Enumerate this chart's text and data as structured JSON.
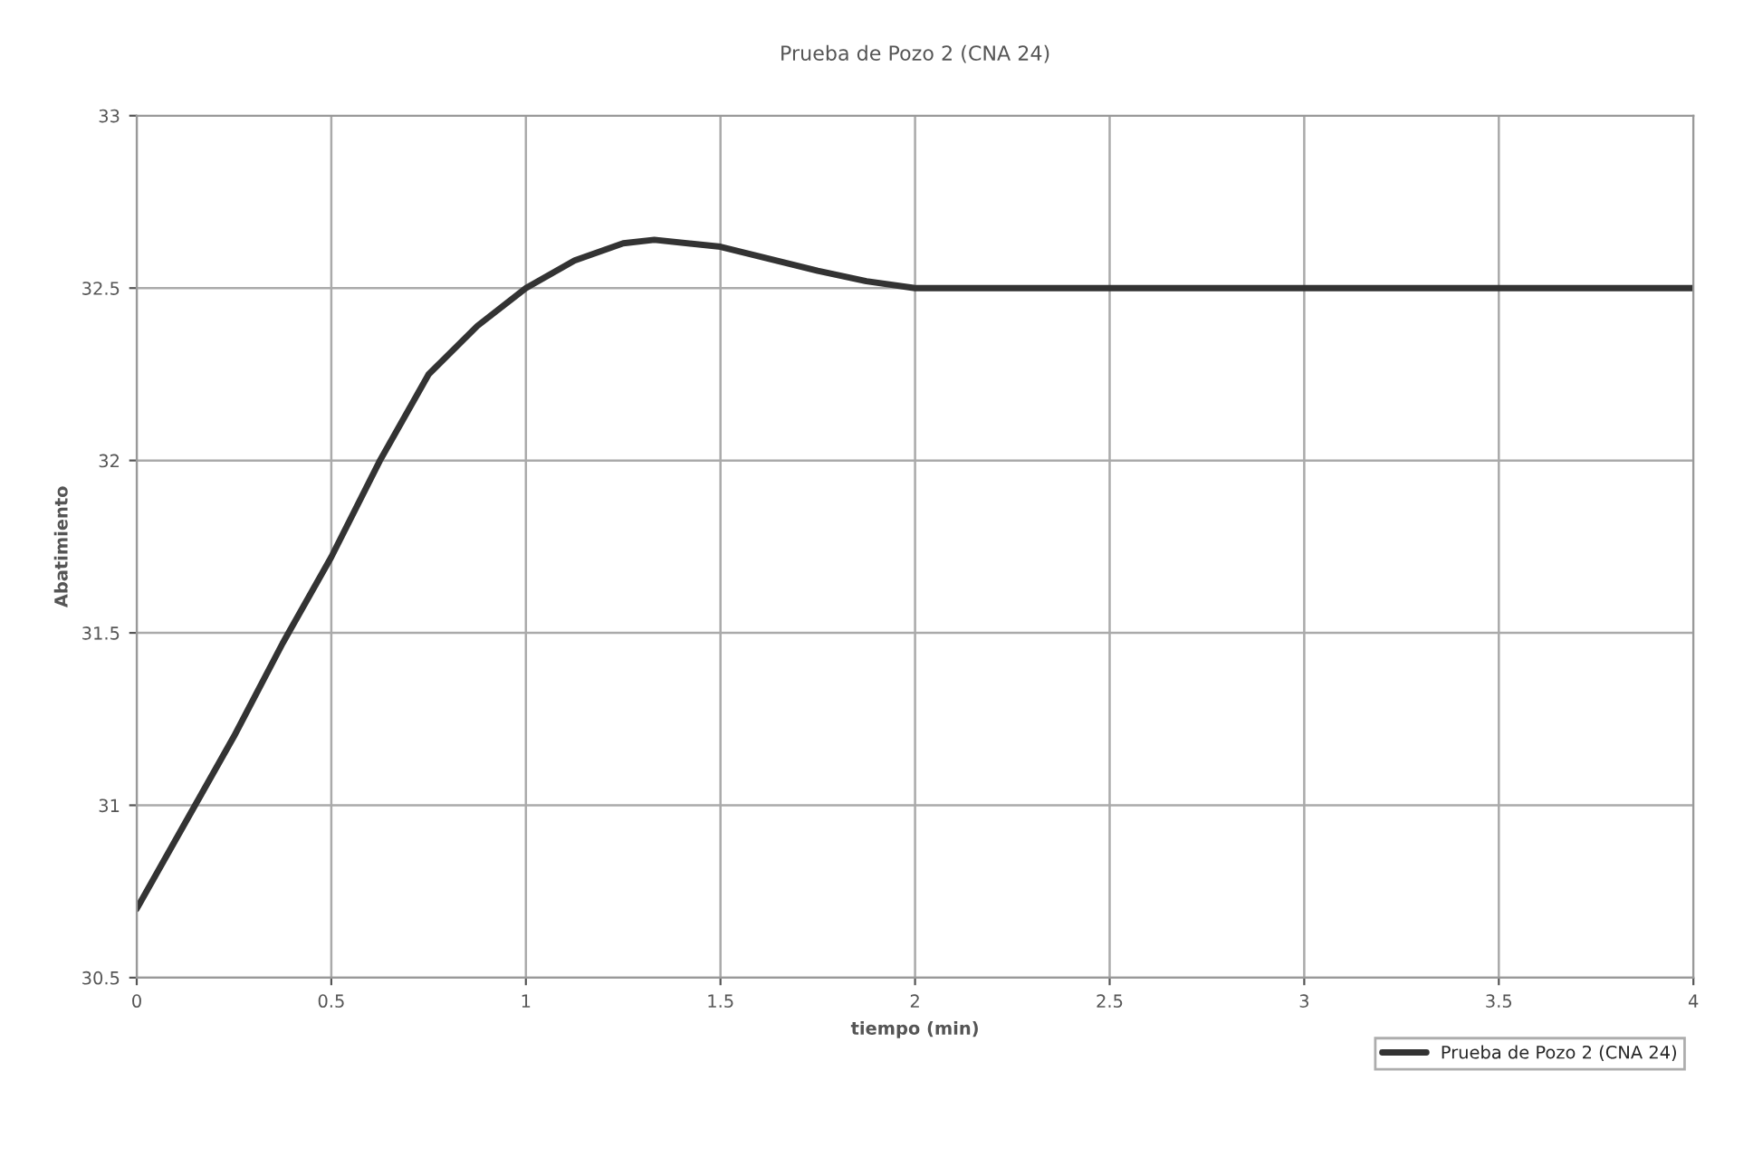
{
  "chart_data": {
    "type": "line",
    "title": "Prueba de Pozo 2 (CNA 24)",
    "xlabel": "tiempo (min)",
    "ylabel": "Abatimiento",
    "x": [
      0,
      0.125,
      0.25,
      0.375,
      0.5,
      0.625,
      0.75,
      0.875,
      1,
      1.125,
      1.25,
      1.33,
      1.5,
      1.75,
      1.875,
      2,
      2.5,
      3,
      3.5,
      4
    ],
    "series": [
      {
        "name": "Prueba de Pozo 2 (CNA 24)",
        "color": "#333333",
        "values": [
          30.7,
          30.95,
          31.2,
          31.47,
          31.72,
          32.0,
          32.25,
          32.39,
          32.5,
          32.58,
          32.63,
          32.64,
          32.62,
          32.55,
          32.52,
          32.5,
          32.5,
          32.5,
          32.5,
          32.5
        ]
      }
    ],
    "xlim": [
      0,
      4
    ],
    "xticks": [
      0,
      0.5,
      1,
      1.5,
      2,
      2.5,
      3,
      3.5,
      4
    ],
    "ylim": [
      30.5,
      33
    ],
    "yticks": [
      30.5,
      31,
      31.5,
      32,
      32.5,
      33
    ],
    "grid": true,
    "legend": "bottom right",
    "marker": "none",
    "line_style": "solid"
  }
}
